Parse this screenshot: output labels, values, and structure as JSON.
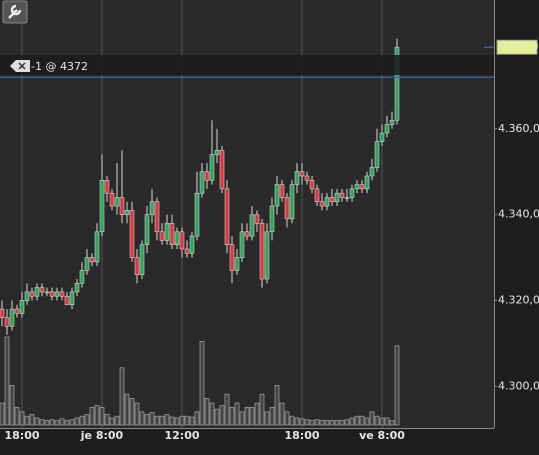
{
  "chart_data": {
    "type": "candlestick",
    "categories": [
      null,
      null,
      null,
      null,
      "18:00",
      null,
      null,
      null,
      null,
      null,
      null,
      null,
      null,
      null,
      null,
      null,
      null,
      null,
      null,
      null,
      "je 8:00",
      null,
      null,
      null,
      null,
      null,
      null,
      null,
      null,
      null,
      null,
      null,
      null,
      null,
      null,
      null,
      "12:00",
      null,
      null,
      null,
      null,
      null,
      null,
      null,
      null,
      null,
      null,
      null,
      null,
      null,
      null,
      null,
      null,
      null,
      null,
      null,
      null,
      null,
      null,
      null,
      "18:00",
      null,
      null,
      null,
      null,
      null,
      null,
      null,
      null,
      null,
      null,
      null,
      null,
      null,
      null,
      null,
      "ve 8:00",
      null,
      null,
      null
    ],
    "open": [
      4318,
      4316,
      4314,
      4318,
      4317,
      4320,
      4322,
      4321,
      4323,
      4322,
      4322,
      4321,
      4322,
      4321,
      4319,
      4322,
      4324,
      4327,
      4330,
      4329,
      4336,
      4348,
      4345,
      4342,
      4344,
      4340,
      4341,
      4330,
      4326,
      4333,
      4340,
      4343,
      4336,
      4334,
      4338,
      4333,
      4336,
      4332,
      4331,
      4335,
      4345,
      4350,
      4348,
      4354,
      4355,
      4346,
      4333,
      4327,
      4330,
      4336,
      4335,
      4340,
      4338,
      4325,
      4336,
      4342,
      4347,
      4344,
      4339,
      4347,
      4350,
      4349,
      4348,
      4346,
      4343,
      4342,
      4344,
      4343,
      4345,
      4344,
      4344,
      4346,
      4347,
      4346,
      4349,
      4351,
      4357,
      4359,
      4361,
      4362
    ],
    "high": [
      4320,
      4318,
      4320,
      4319,
      4322,
      4324,
      4323,
      4324,
      4324,
      4323,
      4323,
      4323,
      4323,
      4322,
      4323,
      4325,
      4329,
      4332,
      4331,
      4338,
      4354,
      4349,
      4346,
      4352,
      4355,
      4343,
      4343,
      4332,
      4334,
      4342,
      4346,
      4344,
      4338,
      4340,
      4340,
      4337,
      4337,
      4334,
      4336,
      4350,
      4352,
      4352,
      4362,
      4360,
      4356,
      4348,
      4335,
      4332,
      4338,
      4338,
      4342,
      4341,
      4339,
      4338,
      4344,
      4349,
      4348,
      4345,
      4348,
      4352,
      4352,
      4350,
      4349,
      4347,
      4345,
      4345,
      4346,
      4346,
      4346,
      4346,
      4347,
      4348,
      4348,
      4350,
      4353,
      4360,
      4361,
      4363,
      4364,
      4381
    ],
    "low": [
      4314,
      4312,
      4313,
      4316,
      4316,
      4319,
      4320,
      4320,
      4321,
      4321,
      4320,
      4320,
      4320,
      4319,
      4318,
      4321,
      4323,
      4326,
      4328,
      4328,
      4335,
      4343,
      4341,
      4340,
      4338,
      4338,
      4329,
      4324,
      4325,
      4331,
      4338,
      4334,
      4333,
      4333,
      4332,
      4332,
      4330,
      4330,
      4330,
      4334,
      4344,
      4346,
      4347,
      4352,
      4345,
      4331,
      4324,
      4326,
      4329,
      4334,
      4334,
      4336,
      4323,
      4324,
      4334,
      4340,
      4343,
      4337,
      4338,
      4345,
      4347,
      4347,
      4345,
      4342,
      4341,
      4341,
      4342,
      4342,
      4343,
      4343,
      4343,
      4345,
      4345,
      4345,
      4348,
      4350,
      4356,
      4358,
      4360,
      4361
    ],
    "close": [
      4316,
      4314,
      4318,
      4317,
      4320,
      4322,
      4321,
      4323,
      4322,
      4322,
      4321,
      4322,
      4321,
      4319,
      4322,
      4324,
      4327,
      4330,
      4329,
      4336,
      4348,
      4345,
      4342,
      4344,
      4340,
      4341,
      4330,
      4326,
      4333,
      4340,
      4343,
      4336,
      4334,
      4338,
      4333,
      4336,
      4332,
      4331,
      4335,
      4345,
      4350,
      4348,
      4354,
      4355,
      4346,
      4333,
      4327,
      4330,
      4336,
      4335,
      4340,
      4338,
      4325,
      4336,
      4342,
      4347,
      4344,
      4339,
      4347,
      4350,
      4349,
      4348,
      4346,
      4343,
      4342,
      4344,
      4343,
      4345,
      4344,
      4344,
      4346,
      4347,
      4346,
      4349,
      4351,
      4357,
      4359,
      4361,
      4362,
      4379
    ],
    "volume": [
      25,
      100,
      45,
      20,
      15,
      10,
      12,
      8,
      6,
      5,
      6,
      5,
      7,
      5,
      6,
      8,
      10,
      12,
      20,
      22,
      20,
      12,
      8,
      10,
      65,
      35,
      30,
      25,
      15,
      12,
      14,
      10,
      10,
      12,
      9,
      8,
      10,
      10,
      9,
      15,
      95,
      30,
      25,
      18,
      22,
      35,
      20,
      25,
      15,
      20,
      20,
      25,
      35,
      15,
      20,
      45,
      25,
      15,
      10,
      8,
      7,
      6,
      5,
      6,
      5,
      5,
      5,
      5,
      5,
      6,
      8,
      10,
      10,
      8,
      15,
      10,
      8,
      8,
      5,
      90
    ],
    "volume_lim": [
      0,
      100
    ],
    "up_color": "#2fa35a",
    "down_color": "#d8383f",
    "volume_color": "#9a9a9a",
    "ylim": [
      4291,
      4390
    ],
    "yticks": [
      {
        "value": 4300,
        "label": "4.300,0"
      },
      {
        "value": 4320,
        "label": "4.320,0"
      },
      {
        "value": 4340,
        "label": "4.340,0"
      },
      {
        "value": 4360,
        "label": "4.360,0"
      }
    ],
    "grid": true,
    "last_price": {
      "value": 4379,
      "label": "4379,0"
    },
    "order_price": 4372,
    "order_label": "-1 @ 4372"
  }
}
